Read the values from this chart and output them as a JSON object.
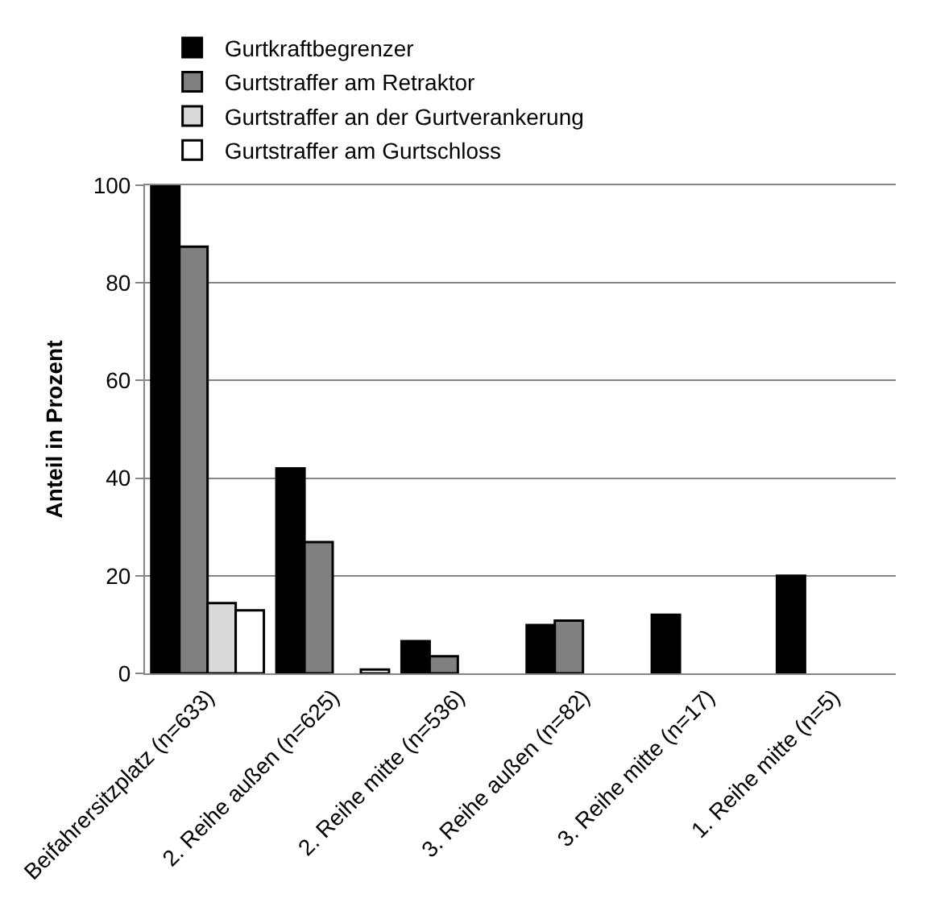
{
  "chart_data": {
    "type": "bar",
    "ylabel": "Anteil in Prozent",
    "categories": [
      "Beifahrersitzplatz (n=633)",
      "2. Reihe außen (n=625)",
      "2. Reihe mitte (n=536)",
      "3. Reihe außen (n=82)",
      "3. Reihe mitte (n=17)",
      "1. Reihe mitte (n=5)"
    ],
    "series": [
      {
        "name": "Gurtkraftbegrenzer",
        "color": "#000000",
        "values": [
          100,
          42,
          6.6,
          9.9,
          12,
          20
        ]
      },
      {
        "name": "Gurtstraffer am Retraktor",
        "color": "#808080",
        "values": [
          87.4,
          26.9,
          3.5,
          10.8,
          null,
          null
        ]
      },
      {
        "name": "Gurtstraffer an der Gurtverankerung",
        "color": "#d9d9d9",
        "values": [
          14.4,
          null,
          null,
          null,
          null,
          null
        ]
      },
      {
        "name": "Gurtstraffer am Gurtschloss",
        "color": "#ffffff",
        "values": [
          12.9,
          0.8,
          null,
          null,
          null,
          null
        ]
      }
    ],
    "ylim": [
      0,
      100
    ],
    "yticks": [
      0,
      20,
      40,
      60,
      80,
      100
    ],
    "grid": "y",
    "legend": "top"
  }
}
